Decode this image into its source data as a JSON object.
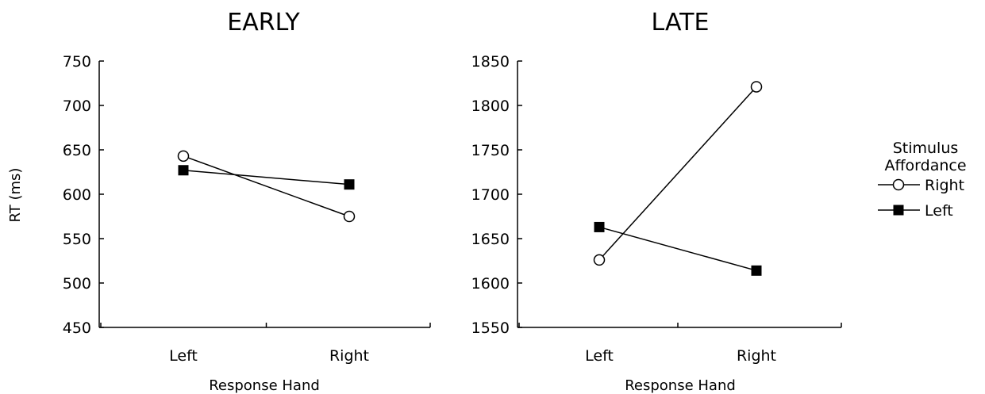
{
  "chart_data": [
    {
      "type": "line",
      "title": "EARLY",
      "xlabel": "Response Hand",
      "ylabel": "RT (ms)",
      "categories": [
        "Left",
        "Right"
      ],
      "ylim": [
        450,
        750
      ],
      "yticks": [
        "450",
        "500",
        "550",
        "600",
        "650",
        "700",
        "750"
      ],
      "series": [
        {
          "name": "Right",
          "values": [
            643,
            575
          ]
        },
        {
          "name": "Left",
          "values": [
            627,
            611
          ]
        }
      ]
    },
    {
      "type": "line",
      "title": "LATE",
      "xlabel": "Response Hand",
      "ylabel": "",
      "categories": [
        "Left",
        "Right"
      ],
      "ylim": [
        1550,
        1850
      ],
      "yticks": [
        "1550",
        "1600",
        "1650",
        "1700",
        "1750",
        "1800",
        "1850"
      ],
      "series": [
        {
          "name": "Right",
          "values": [
            1626,
            1821
          ]
        },
        {
          "name": "Left",
          "values": [
            1663,
            1614
          ]
        }
      ]
    }
  ],
  "legend": {
    "title_line1": "Stimulus",
    "title_line2": "Affordance",
    "placement": "right",
    "entries": [
      {
        "label": "Right",
        "marker": "open-circle"
      },
      {
        "label": "Left",
        "marker": "filled-square"
      }
    ]
  }
}
